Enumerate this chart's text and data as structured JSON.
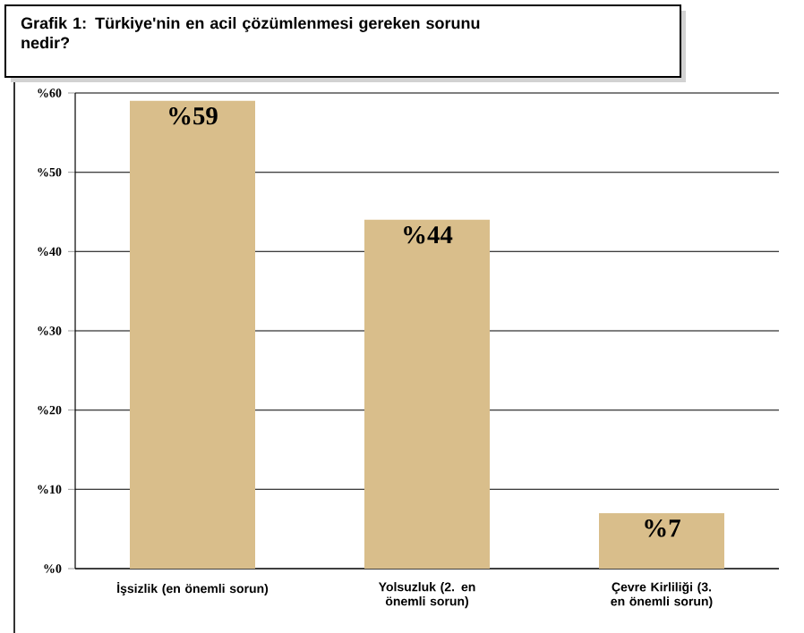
{
  "chart_data": {
    "type": "bar",
    "title": "Grafik 1: Türkiye'nin en acil çözümlenmesi gereken sorunu nedir?",
    "categories": [
      "İşsizlik (en önemli sorun)",
      "Yolsuzluk (2. en önemli sorun)",
      "Çevre Kirliliği (3. en önemli sorun)"
    ],
    "values": [
      59,
      44,
      7
    ],
    "value_labels": [
      "%59",
      "%44",
      "%7"
    ],
    "color": "#d9be8b",
    "ylim": [
      0,
      60
    ],
    "yticks": [
      {
        "value": 0,
        "label": "%0"
      },
      {
        "value": 10,
        "label": "%10"
      },
      {
        "value": 20,
        "label": "%20"
      },
      {
        "value": 30,
        "label": "%30"
      },
      {
        "value": 40,
        "label": "%40"
      },
      {
        "value": 50,
        "label": "%50"
      },
      {
        "value": 60,
        "label": "%60"
      }
    ],
    "grid": "y"
  }
}
